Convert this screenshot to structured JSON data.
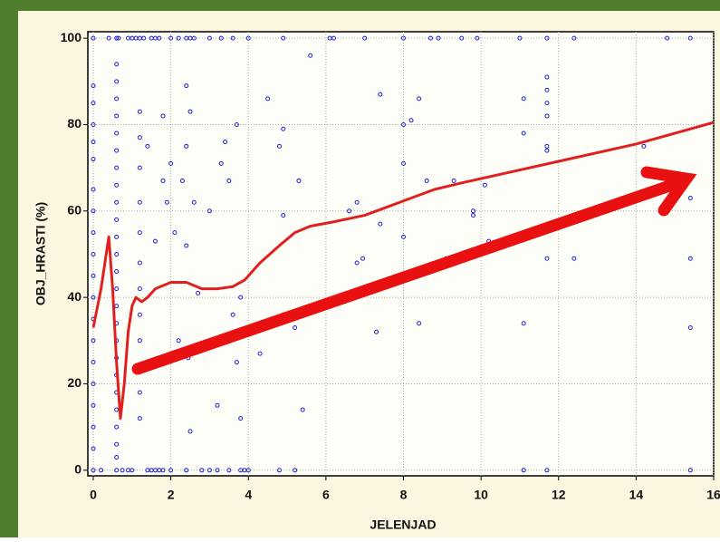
{
  "chart_data": {
    "type": "scatter",
    "x_label": "JELENJAD",
    "y_label": "OBJ_HRASTI (%)",
    "xlim": [
      -0.14,
      16
    ],
    "ylim": [
      -1.3,
      101.5
    ],
    "xticks": [
      0,
      2,
      4,
      6,
      8,
      10,
      12,
      14,
      16
    ],
    "yticks": [
      0,
      20,
      40,
      60,
      80,
      100
    ],
    "grid": true,
    "series": [
      {
        "type": "scatter",
        "color": "#2020d0",
        "x": [
          0,
          0.4,
          0.6,
          0.65,
          0.9,
          1.0,
          1.1,
          1.2,
          1.3,
          1.5,
          1.6,
          1.7,
          2.0,
          2.2,
          2.4,
          2.5,
          2.6,
          3.0,
          3.3,
          3.6,
          4.0,
          4.9,
          6.1,
          6.2,
          7.0,
          8.0,
          8.7,
          8.9,
          9.5,
          9.9,
          11.0,
          11.7,
          12.4,
          14.8,
          15.4,
          0,
          0.2,
          0.6,
          0.75,
          0.9,
          1.0,
          1.4,
          1.5,
          1.6,
          1.7,
          1.8,
          2.0,
          2.4,
          2.8,
          3.0,
          3.2,
          3.5,
          3.8,
          3.9,
          4.0,
          4.8,
          5.2,
          11.1,
          11.7,
          15.4,
          0,
          0,
          0,
          0,
          0,
          0,
          0,
          0,
          0,
          0,
          0,
          0,
          0,
          0,
          0,
          0,
          0,
          0,
          0.6,
          0.6,
          0.6,
          0.6,
          0.6,
          0.6,
          0.6,
          0.6,
          0.6,
          0.6,
          0.6,
          0.6,
          0.6,
          0.6,
          0.6,
          0.6,
          0.6,
          0.6,
          0.6,
          0.6,
          0.6,
          0.6,
          0.6,
          0.6,
          1.2,
          1.2,
          1.2,
          1.2,
          1.2,
          1.2,
          1.2,
          1.2,
          1.2,
          1.2,
          1.2,
          1.2,
          1.4,
          1.6,
          1.8,
          1.8,
          1.9,
          2.0,
          2.1,
          2.2,
          2.3,
          2.4,
          2.4,
          2.4,
          2.45,
          2.5,
          2.5,
          2.6,
          2.7,
          3.0,
          3.2,
          3.3,
          3.4,
          3.5,
          3.6,
          3.7,
          3.7,
          3.8,
          3.8,
          4.3,
          4.5,
          4.8,
          4.9,
          4.9,
          4.9,
          5.2,
          5.3,
          5.4,
          5.6,
          6.6,
          6.8,
          6.8,
          6.95,
          7.3,
          7.4,
          7.4,
          8.0,
          8.0,
          8.0,
          8.2,
          8.4,
          8.4,
          8.6,
          9.1,
          9.3,
          9.8,
          9.8,
          10.1,
          10.2,
          11.1,
          11.1,
          11.1,
          11.7,
          11.7,
          11.7,
          11.7,
          11.7,
          11.7,
          11.7,
          11.7,
          12.4,
          14.2,
          15.4,
          15.4,
          15.4
        ],
        "values": [
          100,
          100,
          100,
          100,
          100,
          100,
          100,
          100,
          100,
          100,
          100,
          100,
          100,
          100,
          100,
          100,
          100,
          100,
          100,
          100,
          100,
          100,
          100,
          100,
          100,
          100,
          100,
          100,
          100,
          100,
          100,
          100,
          100,
          100,
          100,
          0,
          0,
          0,
          0,
          0,
          0,
          0,
          0,
          0,
          0,
          0,
          0,
          0,
          0,
          0,
          0,
          0,
          0,
          0,
          0,
          0,
          0,
          0,
          0,
          0,
          89,
          85,
          80,
          76,
          72,
          65,
          60,
          55,
          50,
          45,
          40,
          35,
          30,
          25,
          20,
          15,
          10,
          5,
          94,
          90,
          86,
          82,
          78,
          74,
          70,
          66,
          62,
          58,
          54,
          50,
          46,
          42,
          38,
          34,
          30,
          26,
          22,
          18,
          14,
          10,
          6,
          3,
          83,
          77,
          70,
          62,
          55,
          48,
          42,
          36,
          30,
          24,
          18,
          12,
          75,
          53,
          82,
          67,
          62,
          71,
          55,
          30,
          67,
          89,
          75,
          52,
          26,
          83,
          9,
          62,
          41,
          60,
          15,
          71,
          76,
          67,
          36,
          80,
          25,
          40,
          12,
          27,
          86,
          75,
          79,
          59,
          36,
          33,
          67,
          14,
          96,
          60,
          62,
          48,
          49,
          32,
          87,
          57,
          80,
          71,
          54,
          81,
          86,
          34,
          67,
          49,
          67,
          60,
          59,
          66,
          53,
          86,
          78,
          34,
          91,
          88,
          85,
          82,
          75,
          74,
          56,
          49,
          49,
          75,
          63,
          49,
          33
        ]
      },
      {
        "type": "line",
        "color": "#e02020",
        "x": [
          0,
          0.2,
          0.4,
          0.5,
          0.6,
          0.7,
          0.8,
          0.9,
          1.0,
          1.1,
          1.25,
          1.4,
          1.6,
          2.0,
          2.4,
          2.8,
          3.2,
          3.6,
          3.9,
          4.3,
          4.8,
          5.2,
          5.6,
          6.2,
          7.0,
          7.6,
          8.2,
          8.8,
          9.5,
          10.5,
          12.0,
          14.0,
          16.0
        ],
        "values": [
          33,
          42,
          54,
          42,
          25,
          12,
          20,
          32,
          38,
          40,
          39,
          40,
          42,
          43.5,
          43.5,
          42,
          42,
          42.5,
          44,
          48,
          52,
          55,
          56.5,
          57.5,
          59,
          61,
          63,
          65,
          66.5,
          68.5,
          71.5,
          75.5,
          80.5
        ]
      }
    ]
  }
}
